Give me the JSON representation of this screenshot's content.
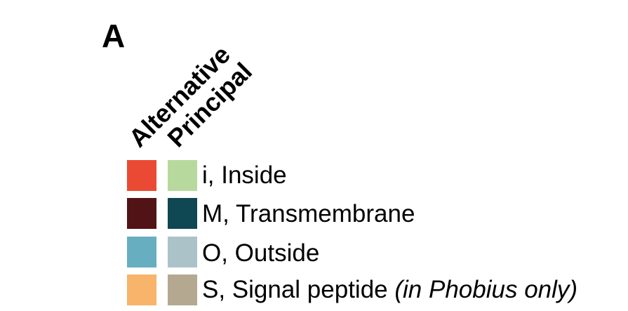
{
  "panel_label": "A",
  "columns": {
    "alternative": "Alternative",
    "principal": "Principal"
  },
  "legend": [
    {
      "label": "i, Inside",
      "note": "",
      "alternative_color": "#ea4a33",
      "principal_color": "#b8d99e"
    },
    {
      "label": "M, Transmembrane",
      "note": "",
      "alternative_color": "#521316",
      "principal_color": "#0f4752"
    },
    {
      "label": "O, Outside",
      "note": "",
      "alternative_color": "#67aec1",
      "principal_color": "#abc2c9"
    },
    {
      "label": "S, Signal peptide ",
      "note": "(in Phobius only)",
      "alternative_color": "#f8b46a",
      "principal_color": "#b4a891"
    }
  ]
}
